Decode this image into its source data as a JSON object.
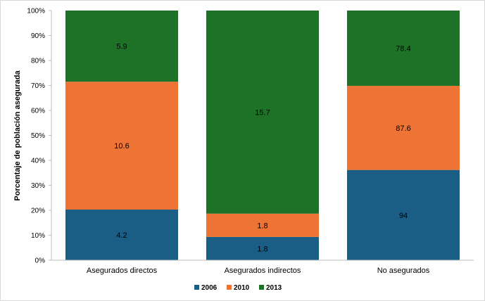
{
  "chart_data": {
    "type": "bar",
    "stacked": "percent",
    "categories": [
      "Asegurados directos",
      "Asegurados indirectos",
      "No asegurados"
    ],
    "series": [
      {
        "name": "2006",
        "color": "#1a5e85",
        "values": [
          4.2,
          1.8,
          94
        ]
      },
      {
        "name": "2010",
        "color": "#ed7434",
        "values": [
          10.6,
          1.8,
          87.6
        ]
      },
      {
        "name": "2013",
        "color": "#1e7228",
        "values": [
          5.9,
          15.7,
          78.4
        ]
      }
    ],
    "value_labels": [
      [
        "4.2",
        "1.8",
        "94"
      ],
      [
        "10.6",
        "1.8",
        "87.6"
      ],
      [
        "5.9",
        "15.7",
        "78.4"
      ]
    ],
    "y_ticks": [
      "0%",
      "10%",
      "20%",
      "30%",
      "40%",
      "50%",
      "60%",
      "70%",
      "80%",
      "90%",
      "100%"
    ],
    "ylim": [
      0,
      100
    ],
    "ylabel": "Porcentaje de población asegurada",
    "xlabel": "",
    "grid": false,
    "legend_position": "bottom"
  }
}
